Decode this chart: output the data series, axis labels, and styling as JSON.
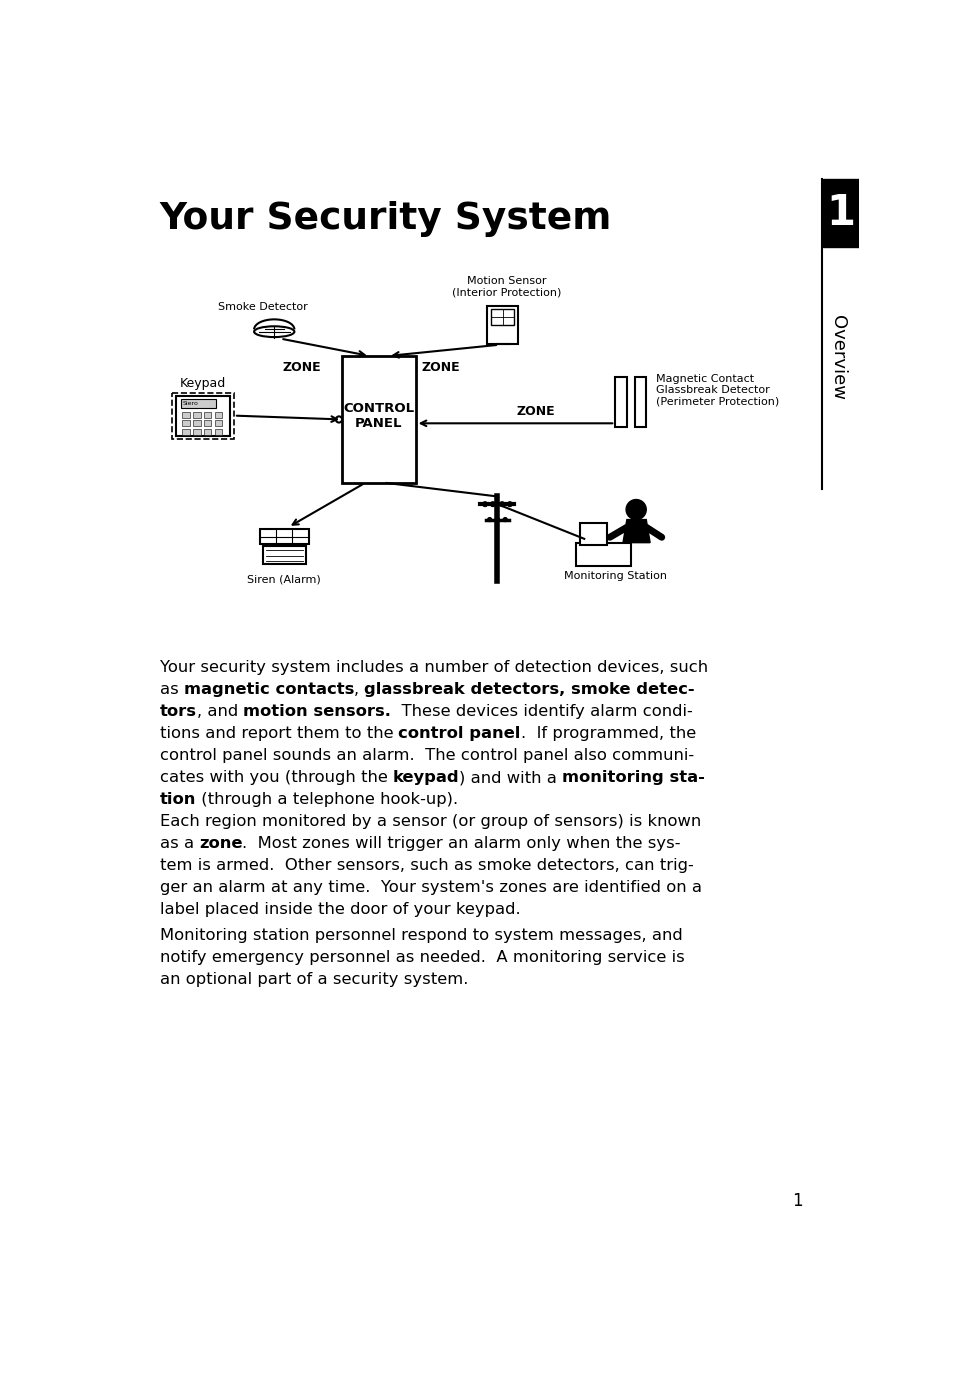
{
  "title": "Your Security System",
  "page_number": "1",
  "tab_label": "Overview",
  "bg_color": "#ffffff",
  "text_color": "#000000",
  "p1_lines": [
    [
      [
        "Your security system includes a number of detection devices, such",
        false
      ]
    ],
    [
      [
        "as ",
        false
      ],
      [
        "magnetic contacts",
        true
      ],
      [
        ", ",
        false
      ],
      [
        "glassbreak detectors, smoke detec-",
        true
      ]
    ],
    [
      [
        "tors",
        true
      ],
      [
        ", and ",
        false
      ],
      [
        "motion sensors.",
        true
      ],
      [
        "  These devices identify alarm condi-",
        false
      ]
    ],
    [
      [
        "tions and report them to the ",
        false
      ],
      [
        "control panel",
        true
      ],
      [
        ".  If programmed, the",
        false
      ]
    ],
    [
      [
        "control panel sounds an alarm.  The control panel also communi-",
        false
      ]
    ],
    [
      [
        "cates with you (through the ",
        false
      ],
      [
        "keypad",
        true
      ],
      [
        ") and with a ",
        false
      ],
      [
        "monitoring sta-",
        true
      ]
    ],
    [
      [
        "tion",
        true
      ],
      [
        " (through a telephone hook-up).",
        false
      ]
    ]
  ],
  "p2_lines": [
    [
      [
        "Each region monitored by a sensor (or group of sensors) is known",
        false
      ]
    ],
    [
      [
        "as a ",
        false
      ],
      [
        "zone",
        true
      ],
      [
        ".  Most zones will trigger an alarm only when the sys-",
        false
      ]
    ],
    [
      [
        "tem is armed.  Other sensors, such as smoke detectors, can trig-",
        false
      ]
    ],
    [
      [
        "ger an alarm at any time.  Your system's zones are identified on a",
        false
      ]
    ],
    [
      [
        "label placed inside the door of your keypad.",
        false
      ]
    ]
  ],
  "p3_lines": [
    [
      [
        "Monitoring station personnel respond to system messages, and",
        false
      ]
    ],
    [
      [
        "notify emergency personnel as needed.  A monitoring service is",
        false
      ]
    ],
    [
      [
        "an optional part of a security system.",
        false
      ]
    ]
  ],
  "diag": {
    "smoke_label": "Smoke Detector",
    "motion_label": "Motion Sensor\n(Interior Protection)",
    "magnetic_label": "Magnetic Contact\nGlassbreak Detector\n(Perimeter Protection)",
    "keypad_label": "Keypad",
    "cp_label": "CONTROL\nPANEL",
    "siren_label": "Siren (Alarm)",
    "mon_label": "Monitoring Station",
    "zone": "ZONE"
  }
}
